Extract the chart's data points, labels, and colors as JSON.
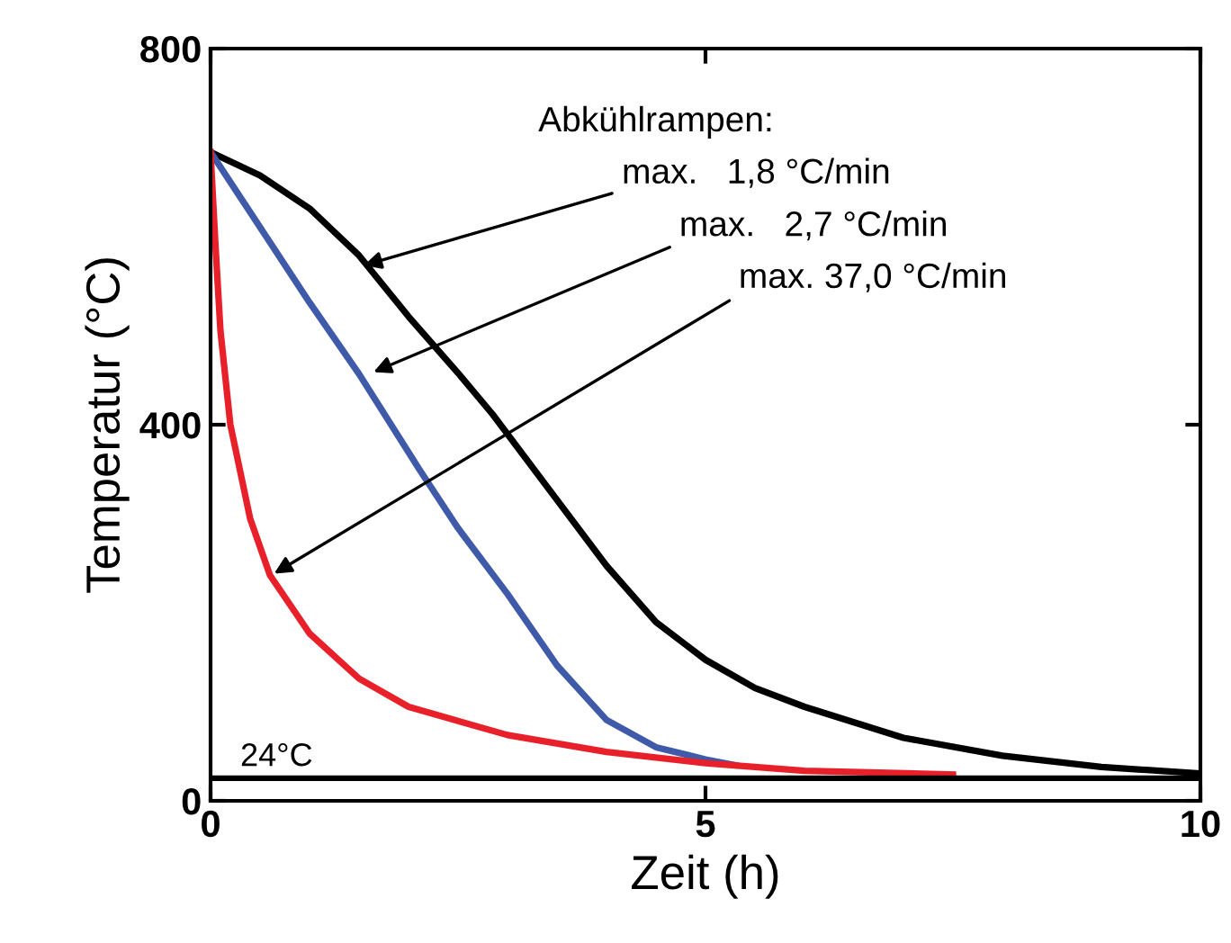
{
  "chart_data": {
    "type": "line",
    "xlabel": "Zeit (h)",
    "ylabel": "Temperatur (°C)",
    "xlim": [
      0,
      10
    ],
    "xticks": [
      0,
      5,
      10
    ],
    "ylim": [
      0,
      800
    ],
    "yticks": [
      0,
      400,
      800
    ],
    "grid": false,
    "legend": false,
    "marker": "none",
    "line_style": "solid",
    "series": [
      {
        "color": "#000000",
        "x": [
          0,
          0.5,
          1,
          1.5,
          2,
          2.5,
          2.85,
          3.5,
          4,
          4.5,
          5,
          5.5,
          6,
          7,
          8,
          9,
          10
        ],
        "values": [
          690,
          665,
          630,
          580,
          515,
          455,
          411,
          320,
          250,
          190,
          150,
          120,
          100,
          67,
          48,
          36,
          29
        ]
      },
      {
        "color": "#3f5aa8",
        "x": [
          0,
          0.5,
          1,
          1.5,
          2.1,
          2.5,
          3,
          3.5,
          4,
          4.5,
          5,
          5.3
        ],
        "values": [
          690,
          610,
          530,
          454,
          354,
          290,
          220,
          144,
          86,
          57,
          44,
          38
        ]
      },
      {
        "color": "#e8202a",
        "x": [
          0,
          0.05,
          0.1,
          0.2,
          0.4,
          0.6,
          1,
          1.5,
          2,
          3,
          4,
          5,
          6,
          7.5
        ],
        "values": [
          690,
          590,
          500,
          400,
          300,
          240,
          178,
          130,
          100,
          70,
          52,
          40,
          32,
          28
        ]
      }
    ],
    "ref_lines": [
      {
        "axis": "y",
        "value": 24,
        "label": "24°C",
        "color": "#000000"
      }
    ],
    "annotations": [
      "Abkühlrampen:",
      {
        "text": "max.   1,8 °C/min",
        "x": 1.5,
        "y": 568
      },
      {
        "text": "max.   2,7 °C/min",
        "x": 1.6,
        "y": 454
      },
      {
        "text": "max. 37,0 °C/min",
        "x": 0.6,
        "y": 239
      }
    ]
  }
}
